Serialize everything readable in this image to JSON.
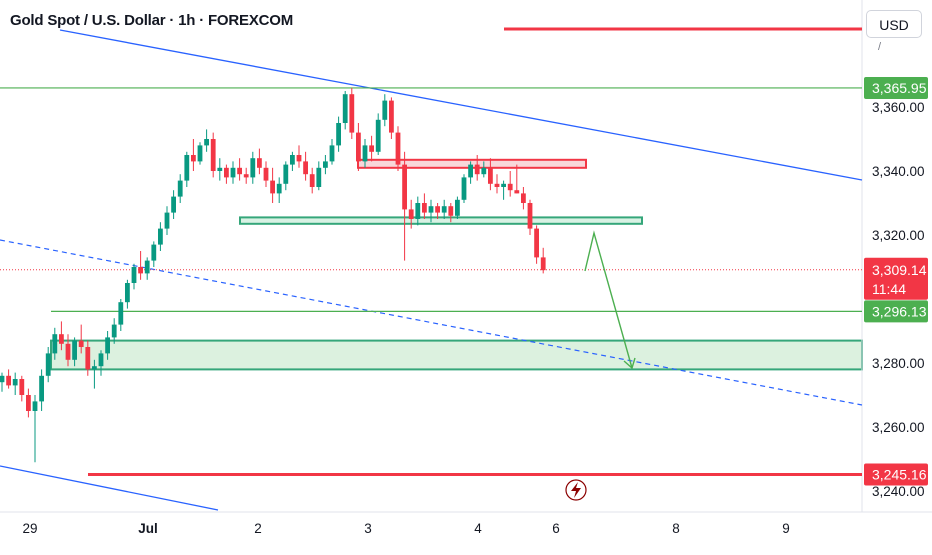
{
  "header": {
    "title": "Gold Spot / U.S. Dollar · 1h · FOREXCOM",
    "currency": "USD"
  },
  "colors": {
    "bull": "#089981",
    "bear": "#f23645",
    "trend": "#2962ff",
    "zone_green": "#4caf50",
    "zone_red": "#f23645",
    "axis_text": "#131722"
  },
  "icons": {
    "flash": "lightning-icon"
  },
  "chart_data": {
    "type": "candlestick",
    "title": "Gold Spot / U.S. Dollar · 1h · FOREXCOM",
    "ylim": [
      3236,
      3373
    ],
    "grid": false,
    "y_ticks": [
      "3,360.00",
      "3,340.00",
      "3,320.00",
      "3,280.00",
      "3,260.00",
      "3,240.00"
    ],
    "y_tick_values": [
      3360,
      3340,
      3320,
      3280,
      3260,
      3240
    ],
    "x_ticks": [
      "29",
      "Jul",
      "2",
      "3",
      "4",
      "6",
      "8",
      "9"
    ],
    "price_labels": [
      {
        "name": "resistance",
        "value": 3365.95,
        "text": "3,365.95",
        "color": "#4caf50"
      },
      {
        "name": "current",
        "value": 3309.14,
        "text": "3,309.14",
        "countdown": "11:44",
        "color": "#f23645"
      },
      {
        "name": "support",
        "value": 3296.13,
        "text": "3,296.13",
        "color": "#4caf50"
      },
      {
        "name": "low-line",
        "value": 3245.16,
        "text": "3,245.16",
        "color": "#f23645"
      }
    ],
    "candles": [
      [
        3274,
        3277,
        3271,
        3276
      ],
      [
        3276,
        3278,
        3272,
        3273
      ],
      [
        3273,
        3277,
        3270,
        3275
      ],
      [
        3275,
        3276,
        3268,
        3270
      ],
      [
        3270,
        3272,
        3263,
        3265
      ],
      [
        3265,
        3270,
        3249,
        3268
      ],
      [
        3268,
        3278,
        3265,
        3276
      ],
      [
        3276,
        3285,
        3274,
        3283
      ],
      [
        3283,
        3291,
        3281,
        3289
      ],
      [
        3289,
        3293,
        3284,
        3286
      ],
      [
        3286,
        3289,
        3279,
        3281
      ],
      [
        3281,
        3288,
        3279,
        3287
      ],
      [
        3287,
        3292,
        3283,
        3285
      ],
      [
        3285,
        3287,
        3276,
        3278
      ],
      [
        3278,
        3281,
        3272,
        3279
      ],
      [
        3279,
        3284,
        3276,
        3283
      ],
      [
        3283,
        3290,
        3281,
        3288
      ],
      [
        3288,
        3294,
        3286,
        3292
      ],
      [
        3292,
        3300,
        3290,
        3299
      ],
      [
        3299,
        3306,
        3297,
        3305
      ],
      [
        3305,
        3311,
        3303,
        3310
      ],
      [
        3310,
        3315,
        3306,
        3308
      ],
      [
        3308,
        3313,
        3306,
        3312
      ],
      [
        3312,
        3318,
        3310,
        3317
      ],
      [
        3317,
        3324,
        3315,
        3322
      ],
      [
        3322,
        3329,
        3320,
        3327
      ],
      [
        3327,
        3334,
        3325,
        3332
      ],
      [
        3332,
        3339,
        3330,
        3337
      ],
      [
        3337,
        3346,
        3335,
        3345
      ],
      [
        3345,
        3350,
        3340,
        3343
      ],
      [
        3343,
        3349,
        3342,
        3348
      ],
      [
        3348,
        3353,
        3346,
        3350
      ],
      [
        3350,
        3352,
        3338,
        3340
      ],
      [
        3340,
        3344,
        3337,
        3341
      ],
      [
        3341,
        3342,
        3336,
        3338
      ],
      [
        3338,
        3343,
        3336,
        3341
      ],
      [
        3341,
        3344,
        3337,
        3339
      ],
      [
        3339,
        3341,
        3336,
        3338
      ],
      [
        3338,
        3346,
        3336,
        3344
      ],
      [
        3344,
        3347,
        3339,
        3341
      ],
      [
        3341,
        3343,
        3335,
        3337
      ],
      [
        3337,
        3341,
        3330,
        3333
      ],
      [
        3333,
        3338,
        3330,
        3336
      ],
      [
        3336,
        3343,
        3334,
        3342
      ],
      [
        3342,
        3346,
        3340,
        3345
      ],
      [
        3345,
        3348,
        3341,
        3343
      ],
      [
        3343,
        3346,
        3337,
        3339
      ],
      [
        3339,
        3341,
        3333,
        3335
      ],
      [
        3335,
        3343,
        3334,
        3341
      ],
      [
        3341,
        3345,
        3339,
        3343
      ],
      [
        3343,
        3350,
        3342,
        3348
      ],
      [
        3348,
        3357,
        3346,
        3355
      ],
      [
        3355,
        3365,
        3353,
        3364
      ],
      [
        3364,
        3366,
        3350,
        3352
      ],
      [
        3352,
        3355,
        3340,
        3343
      ],
      [
        3343,
        3350,
        3341,
        3348
      ],
      [
        3348,
        3351,
        3343,
        3346
      ],
      [
        3346,
        3358,
        3345,
        3356
      ],
      [
        3356,
        3364,
        3354,
        3362
      ],
      [
        3362,
        3363,
        3350,
        3352
      ],
      [
        3352,
        3354,
        3340,
        3342
      ],
      [
        3342,
        3346,
        3312,
        3328
      ],
      [
        3328,
        3331,
        3322,
        3325
      ],
      [
        3325,
        3332,
        3323,
        3330
      ],
      [
        3330,
        3333,
        3325,
        3327
      ],
      [
        3327,
        3331,
        3324,
        3329
      ],
      [
        3329,
        3330,
        3325,
        3327
      ],
      [
        3327,
        3331,
        3325,
        3329
      ],
      [
        3329,
        3330,
        3324,
        3326
      ],
      [
        3326,
        3332,
        3325,
        3331
      ],
      [
        3331,
        3339,
        3330,
        3338
      ],
      [
        3338,
        3343,
        3336,
        3342
      ],
      [
        3342,
        3345,
        3337,
        3339
      ],
      [
        3339,
        3343,
        3338,
        3341
      ],
      [
        3341,
        3344,
        3334,
        3336
      ],
      [
        3336,
        3339,
        3333,
        3335
      ],
      [
        3335,
        3337,
        3331,
        3336
      ],
      [
        3336,
        3340,
        3332,
        3334
      ],
      [
        3334,
        3342,
        3333,
        3333
      ],
      [
        3333,
        3335,
        3328,
        3330
      ],
      [
        3330,
        3331,
        3320,
        3322
      ],
      [
        3322,
        3323,
        3311,
        3313
      ],
      [
        3313,
        3316,
        3308,
        3309
      ]
    ],
    "annotations": [
      {
        "type": "zone",
        "name": "red-zone",
        "y": [
          3341,
          3343.5
        ]
      },
      {
        "type": "zone",
        "name": "green-zone-upper",
        "y": [
          3323.5,
          3325.5
        ]
      },
      {
        "type": "zone",
        "name": "green-zone-lower",
        "y": [
          3278,
          3287
        ]
      },
      {
        "type": "level",
        "name": "resistance-line",
        "y": 3365.95
      },
      {
        "type": "level",
        "name": "support-line",
        "y": 3296.13
      },
      {
        "type": "level",
        "name": "current-price-line",
        "y": 3309.14,
        "dotted": true
      },
      {
        "type": "level",
        "name": "low-line",
        "y": 3245.16
      },
      {
        "type": "projection-arrow",
        "name": "projection-arrow",
        "points": [
          [
            3305,
            3309
          ],
          [
            3326,
            3322
          ],
          [
            3351,
            3279
          ]
        ]
      }
    ]
  }
}
